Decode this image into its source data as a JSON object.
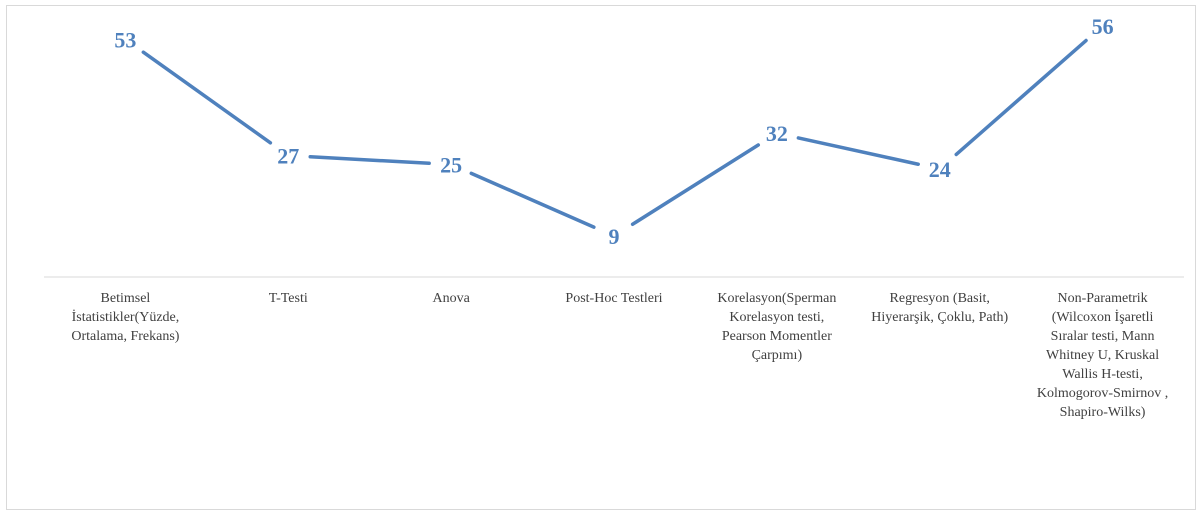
{
  "chart_data": {
    "type": "line",
    "title": "",
    "xlabel": "",
    "ylabel": "",
    "categories": [
      "Betimsel İstatistikler(Yüzde, Ortalama, Frekans)",
      "T-Testi",
      "Anova",
      "Post-Hoc Testleri",
      "Korelasyon(Sperman Korelasyon testi, Pearson Momentler Çarpımı)",
      "Regresyon (Basit, Hiyerarşik, Çoklu, Path)",
      "Non-Parametrik (Wilcoxon İşaretli Sıralar testi, Mann Whitney U, Kruskal Wallis H-testi, Kolmogorov-Smirnov , Shapiro-Wilks)"
    ],
    "series": [
      {
        "values": [
          53,
          27,
          25,
          9,
          32,
          24,
          56
        ]
      }
    ],
    "data_labels": true,
    "ylim": [
      0,
      60
    ],
    "grid": false,
    "legend": "none",
    "line_color": "#4f81bd",
    "label_color": "#4f81bd",
    "axis_color": "#d9d9d9",
    "text_color": "#404040"
  }
}
